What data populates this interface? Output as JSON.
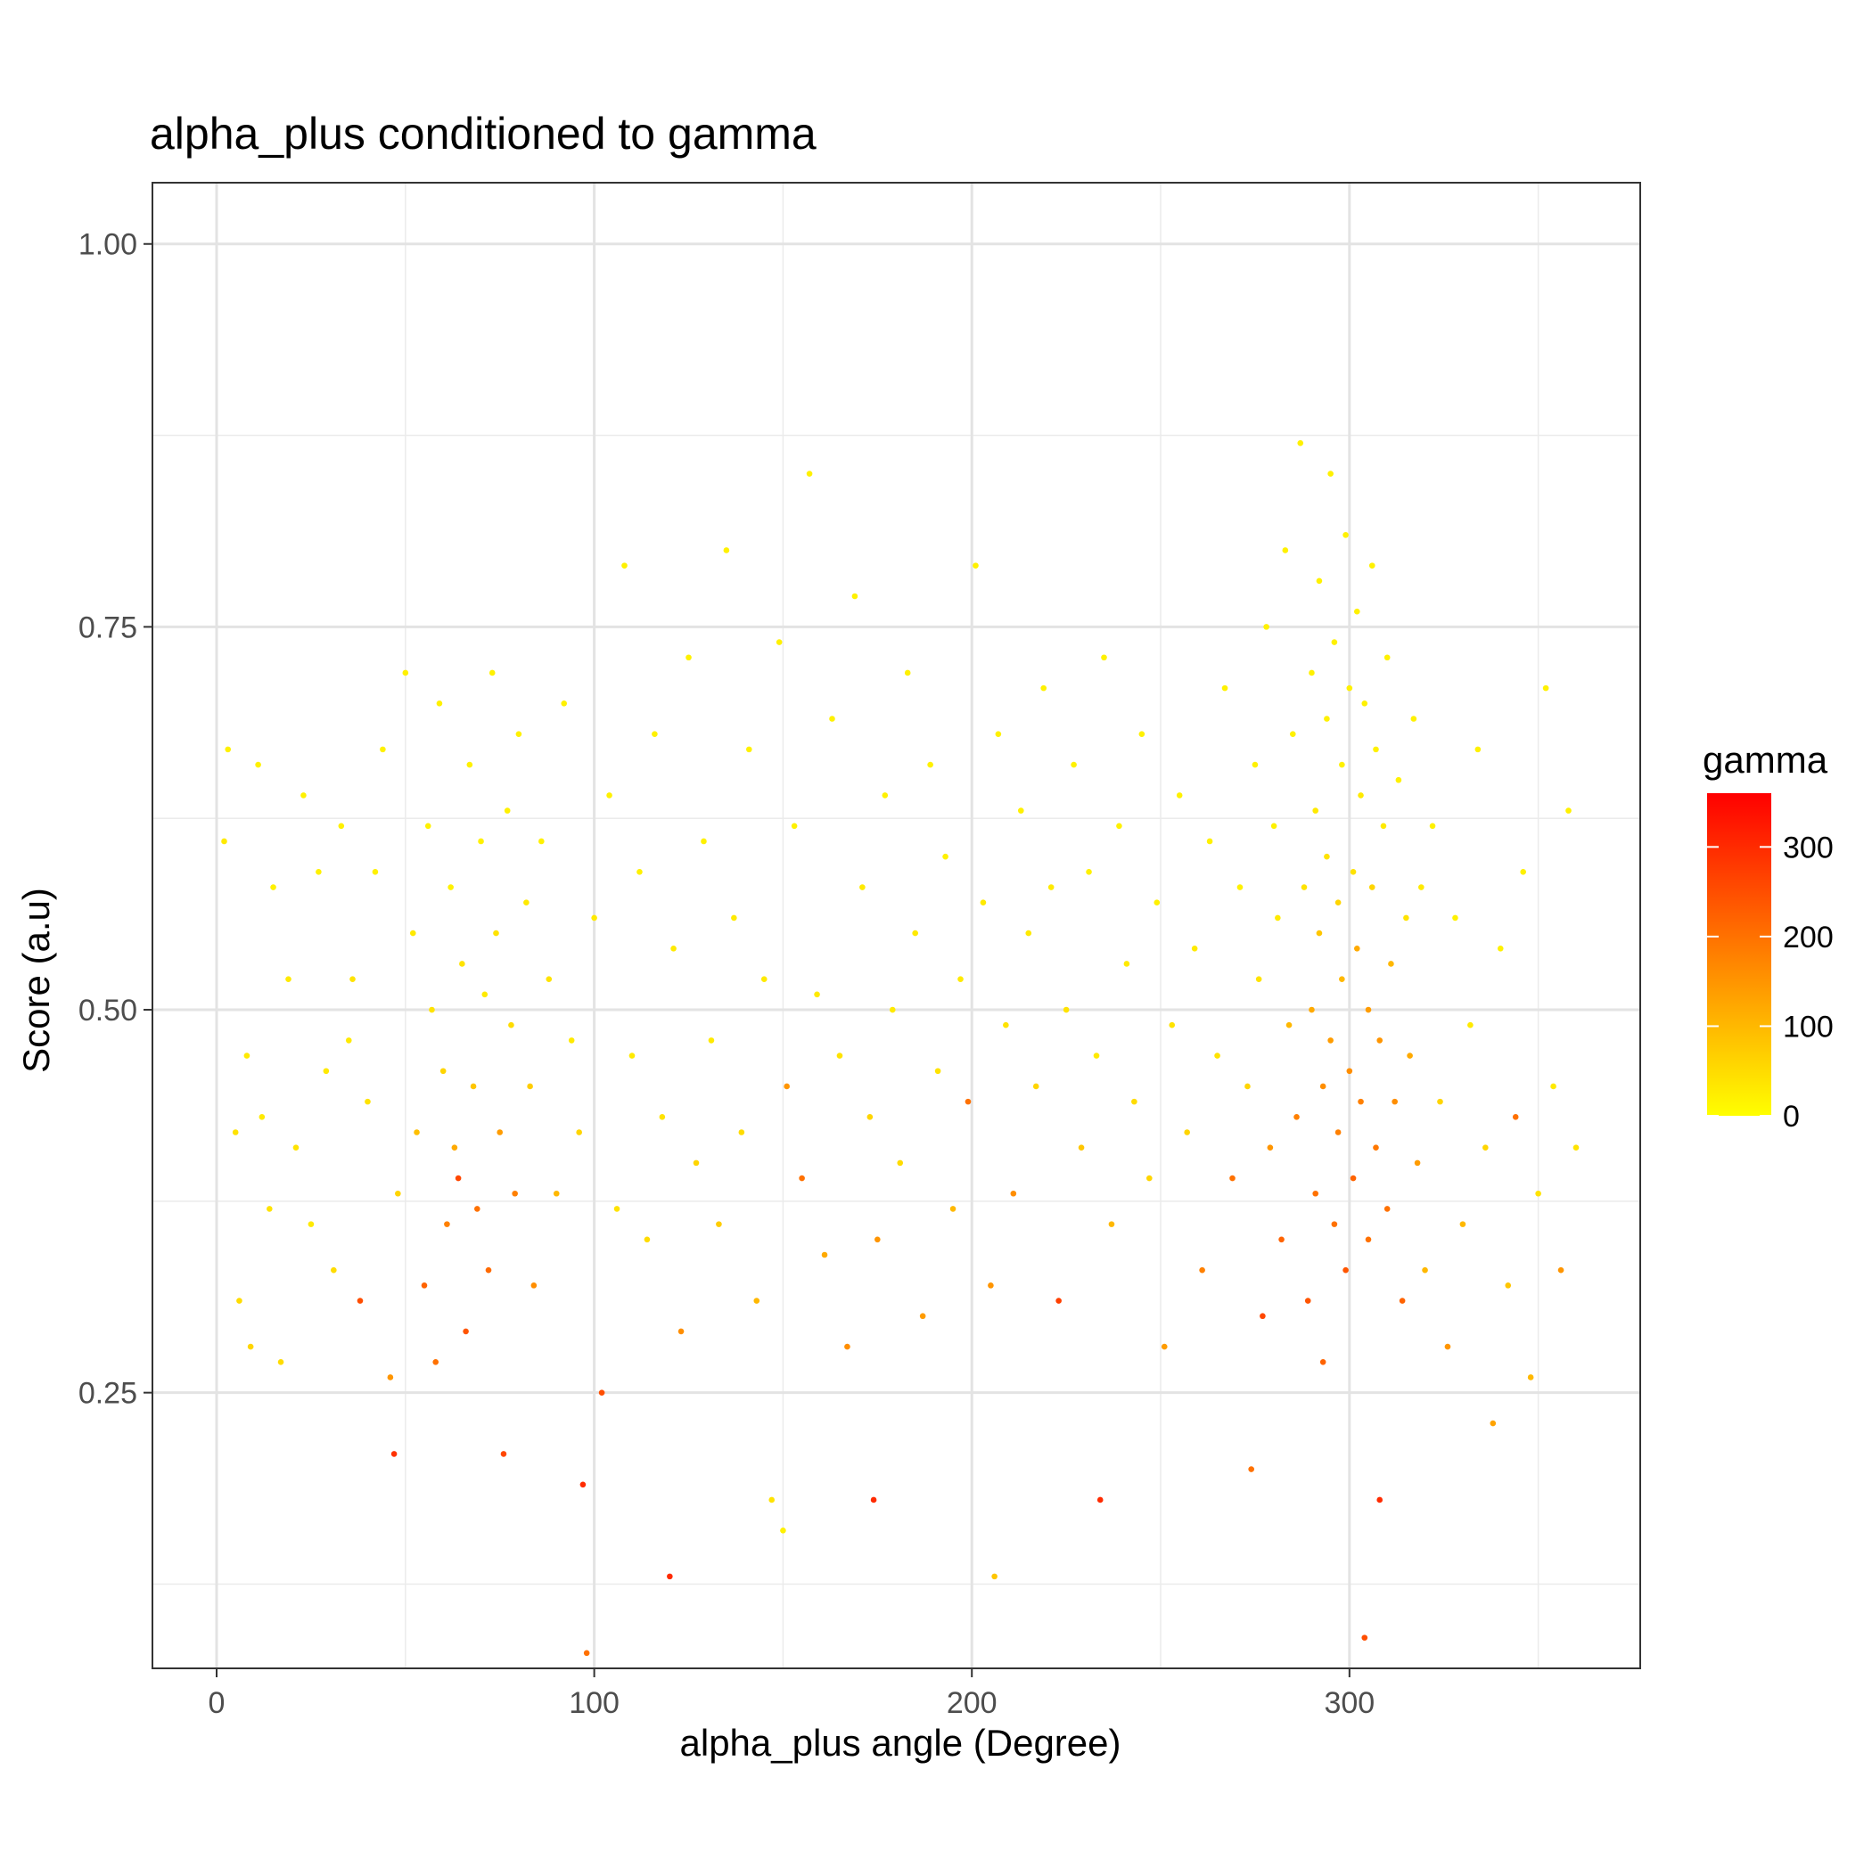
{
  "chart_data": {
    "type": "scatter",
    "title": "alpha_plus conditioned to gamma",
    "xlabel": "alpha_plus angle (Degree)",
    "ylabel": "Score (a.u)",
    "xlim": [
      -17,
      377
    ],
    "ylim": [
      0.07,
      1.04
    ],
    "x_ticks": [
      0,
      100,
      200,
      300
    ],
    "x_tick_labels": [
      "0",
      "100",
      "200",
      "300"
    ],
    "y_ticks": [
      0.25,
      0.5,
      0.75,
      1.0
    ],
    "y_tick_labels": [
      "0.25",
      "0.50",
      "0.75",
      "1.00"
    ],
    "x_minor_ticks": [
      50,
      150,
      250,
      350
    ],
    "y_minor_ticks": [
      0.125,
      0.375,
      0.625,
      0.875
    ],
    "grid": true,
    "theme": "bw",
    "color_scale": {
      "variable": "gamma",
      "low_color": "#FFFF00",
      "high_color": "#FF0000",
      "limits": [
        0,
        360
      ],
      "ticks": [
        0,
        100,
        200,
        300
      ],
      "tick_labels": [
        "0",
        "100",
        "200",
        "300"
      ]
    },
    "legend": {
      "title": "gamma",
      "position": "right"
    },
    "points": [
      [
        2,
        0.61,
        30
      ],
      [
        3,
        0.67,
        20
      ],
      [
        5,
        0.42,
        40
      ],
      [
        6,
        0.31,
        50
      ],
      [
        8,
        0.47,
        30
      ],
      [
        9,
        0.28,
        60
      ],
      [
        11,
        0.66,
        20
      ],
      [
        12,
        0.43,
        30
      ],
      [
        14,
        0.37,
        40
      ],
      [
        15,
        0.58,
        20
      ],
      [
        17,
        0.27,
        50
      ],
      [
        19,
        0.52,
        30
      ],
      [
        21,
        0.41,
        40
      ],
      [
        23,
        0.64,
        20
      ],
      [
        25,
        0.36,
        30
      ],
      [
        27,
        0.59,
        20
      ],
      [
        29,
        0.46,
        30
      ],
      [
        31,
        0.33,
        50
      ],
      [
        33,
        0.62,
        20
      ],
      [
        35,
        0.48,
        30
      ],
      [
        36,
        0.52,
        40
      ],
      [
        38,
        0.31,
        250
      ],
      [
        40,
        0.44,
        40
      ],
      [
        42,
        0.59,
        20
      ],
      [
        44,
        0.67,
        20
      ],
      [
        46,
        0.26,
        150
      ],
      [
        47,
        0.21,
        290
      ],
      [
        48,
        0.38,
        60
      ],
      [
        50,
        0.72,
        20
      ],
      [
        52,
        0.55,
        30
      ],
      [
        53,
        0.42,
        90
      ],
      [
        55,
        0.32,
        220
      ],
      [
        56,
        0.62,
        20
      ],
      [
        57,
        0.5,
        40
      ],
      [
        58,
        0.27,
        200
      ],
      [
        59,
        0.7,
        20
      ],
      [
        60,
        0.46,
        60
      ],
      [
        61,
        0.36,
        180
      ],
      [
        62,
        0.58,
        20
      ],
      [
        63,
        0.41,
        120
      ],
      [
        64,
        0.39,
        260
      ],
      [
        65,
        0.53,
        40
      ],
      [
        66,
        0.29,
        240
      ],
      [
        67,
        0.66,
        20
      ],
      [
        68,
        0.45,
        80
      ],
      [
        69,
        0.37,
        200
      ],
      [
        70,
        0.61,
        20
      ],
      [
        71,
        0.51,
        30
      ],
      [
        72,
        0.33,
        210
      ],
      [
        73,
        0.72,
        20
      ],
      [
        74,
        0.55,
        40
      ],
      [
        75,
        0.42,
        140
      ],
      [
        76,
        0.21,
        260
      ],
      [
        77,
        0.63,
        20
      ],
      [
        78,
        0.49,
        50
      ],
      [
        79,
        0.38,
        180
      ],
      [
        80,
        0.68,
        20
      ],
      [
        82,
        0.57,
        30
      ],
      [
        83,
        0.45,
        70
      ],
      [
        84,
        0.32,
        160
      ],
      [
        86,
        0.61,
        20
      ],
      [
        88,
        0.52,
        40
      ],
      [
        90,
        0.38,
        100
      ],
      [
        92,
        0.7,
        20
      ],
      [
        94,
        0.48,
        30
      ],
      [
        96,
        0.42,
        60
      ],
      [
        97,
        0.19,
        300
      ],
      [
        98,
        0.08,
        200
      ],
      [
        100,
        0.56,
        30
      ],
      [
        102,
        0.25,
        250
      ],
      [
        104,
        0.64,
        20
      ],
      [
        106,
        0.37,
        40
      ],
      [
        108,
        0.79,
        20
      ],
      [
        110,
        0.47,
        30
      ],
      [
        112,
        0.59,
        20
      ],
      [
        114,
        0.35,
        50
      ],
      [
        116,
        0.68,
        20
      ],
      [
        118,
        0.43,
        40
      ],
      [
        120,
        0.13,
        300
      ],
      [
        121,
        0.54,
        30
      ],
      [
        123,
        0.29,
        160
      ],
      [
        125,
        0.73,
        20
      ],
      [
        127,
        0.4,
        60
      ],
      [
        129,
        0.61,
        20
      ],
      [
        131,
        0.48,
        30
      ],
      [
        133,
        0.36,
        70
      ],
      [
        135,
        0.8,
        20
      ],
      [
        137,
        0.56,
        30
      ],
      [
        139,
        0.42,
        50
      ],
      [
        141,
        0.67,
        20
      ],
      [
        143,
        0.31,
        100
      ],
      [
        145,
        0.52,
        30
      ],
      [
        147,
        0.18,
        40
      ],
      [
        149,
        0.74,
        20
      ],
      [
        150,
        0.16,
        20
      ],
      [
        151,
        0.45,
        150
      ],
      [
        153,
        0.62,
        20
      ],
      [
        155,
        0.39,
        200
      ],
      [
        157,
        0.85,
        20
      ],
      [
        159,
        0.51,
        30
      ],
      [
        161,
        0.34,
        120
      ],
      [
        163,
        0.69,
        20
      ],
      [
        165,
        0.47,
        40
      ],
      [
        167,
        0.28,
        160
      ],
      [
        169,
        0.77,
        20
      ],
      [
        171,
        0.58,
        30
      ],
      [
        173,
        0.43,
        60
      ],
      [
        174,
        0.18,
        300
      ],
      [
        175,
        0.35,
        150
      ],
      [
        177,
        0.64,
        20
      ],
      [
        179,
        0.5,
        30
      ],
      [
        181,
        0.4,
        50
      ],
      [
        183,
        0.72,
        20
      ],
      [
        185,
        0.55,
        30
      ],
      [
        187,
        0.3,
        140
      ],
      [
        189,
        0.66,
        20
      ],
      [
        191,
        0.46,
        40
      ],
      [
        193,
        0.6,
        20
      ],
      [
        195,
        0.37,
        100
      ],
      [
        197,
        0.52,
        30
      ],
      [
        199,
        0.44,
        200
      ],
      [
        201,
        0.79,
        20
      ],
      [
        203,
        0.57,
        30
      ],
      [
        205,
        0.32,
        150
      ],
      [
        206,
        0.13,
        80
      ],
      [
        207,
        0.68,
        20
      ],
      [
        209,
        0.49,
        40
      ],
      [
        211,
        0.38,
        160
      ],
      [
        213,
        0.63,
        20
      ],
      [
        215,
        0.55,
        30
      ],
      [
        217,
        0.45,
        60
      ],
      [
        219,
        0.71,
        20
      ],
      [
        221,
        0.58,
        30
      ],
      [
        223,
        0.31,
        270
      ],
      [
        225,
        0.5,
        40
      ],
      [
        227,
        0.66,
        20
      ],
      [
        229,
        0.41,
        80
      ],
      [
        231,
        0.59,
        20
      ],
      [
        233,
        0.47,
        30
      ],
      [
        234,
        0.18,
        300
      ],
      [
        235,
        0.73,
        20
      ],
      [
        237,
        0.36,
        100
      ],
      [
        239,
        0.62,
        20
      ],
      [
        241,
        0.53,
        30
      ],
      [
        243,
        0.44,
        50
      ],
      [
        245,
        0.68,
        20
      ],
      [
        247,
        0.39,
        60
      ],
      [
        249,
        0.57,
        20
      ],
      [
        251,
        0.28,
        140
      ],
      [
        253,
        0.49,
        40
      ],
      [
        255,
        0.64,
        20
      ],
      [
        257,
        0.42,
        60
      ],
      [
        259,
        0.54,
        30
      ],
      [
        261,
        0.33,
        180
      ],
      [
        263,
        0.61,
        20
      ],
      [
        265,
        0.47,
        40
      ],
      [
        267,
        0.71,
        20
      ],
      [
        269,
        0.39,
        200
      ],
      [
        271,
        0.58,
        20
      ],
      [
        273,
        0.45,
        60
      ],
      [
        274,
        0.2,
        200
      ],
      [
        275,
        0.66,
        20
      ],
      [
        276,
        0.52,
        40
      ],
      [
        277,
        0.3,
        260
      ],
      [
        278,
        0.75,
        20
      ],
      [
        279,
        0.41,
        150
      ],
      [
        280,
        0.62,
        20
      ],
      [
        281,
        0.56,
        30
      ],
      [
        282,
        0.35,
        220
      ],
      [
        283,
        0.8,
        20
      ],
      [
        284,
        0.49,
        100
      ],
      [
        285,
        0.68,
        20
      ],
      [
        286,
        0.43,
        180
      ],
      [
        287,
        0.87,
        20
      ],
      [
        288,
        0.58,
        40
      ],
      [
        289,
        0.31,
        240
      ],
      [
        290,
        0.72,
        20
      ],
      [
        290,
        0.5,
        120
      ],
      [
        291,
        0.63,
        30
      ],
      [
        291,
        0.38,
        200
      ],
      [
        292,
        0.78,
        20
      ],
      [
        292,
        0.55,
        80
      ],
      [
        293,
        0.45,
        160
      ],
      [
        293,
        0.27,
        220
      ],
      [
        294,
        0.69,
        20
      ],
      [
        294,
        0.6,
        40
      ],
      [
        295,
        0.85,
        20
      ],
      [
        295,
        0.48,
        140
      ],
      [
        296,
        0.36,
        200
      ],
      [
        296,
        0.74,
        20
      ],
      [
        297,
        0.57,
        60
      ],
      [
        297,
        0.42,
        180
      ],
      [
        298,
        0.66,
        20
      ],
      [
        298,
        0.52,
        100
      ],
      [
        299,
        0.81,
        20
      ],
      [
        299,
        0.33,
        240
      ],
      [
        300,
        0.71,
        20
      ],
      [
        300,
        0.46,
        160
      ],
      [
        301,
        0.59,
        40
      ],
      [
        301,
        0.39,
        220
      ],
      [
        302,
        0.76,
        20
      ],
      [
        302,
        0.54,
        120
      ],
      [
        303,
        0.64,
        30
      ],
      [
        303,
        0.44,
        180
      ],
      [
        304,
        0.09,
        250
      ],
      [
        304,
        0.7,
        20
      ],
      [
        305,
        0.5,
        140
      ],
      [
        305,
        0.35,
        200
      ],
      [
        306,
        0.79,
        20
      ],
      [
        306,
        0.58,
        60
      ],
      [
        307,
        0.41,
        190
      ],
      [
        307,
        0.67,
        20
      ],
      [
        308,
        0.48,
        150
      ],
      [
        308,
        0.18,
        300
      ],
      [
        309,
        0.62,
        30
      ],
      [
        310,
        0.37,
        200
      ],
      [
        310,
        0.73,
        20
      ],
      [
        311,
        0.53,
        100
      ],
      [
        312,
        0.44,
        160
      ],
      [
        313,
        0.65,
        20
      ],
      [
        314,
        0.31,
        220
      ],
      [
        315,
        0.56,
        40
      ],
      [
        316,
        0.47,
        120
      ],
      [
        317,
        0.69,
        20
      ],
      [
        318,
        0.4,
        140
      ],
      [
        319,
        0.58,
        30
      ],
      [
        320,
        0.33,
        100
      ],
      [
        322,
        0.62,
        20
      ],
      [
        324,
        0.44,
        60
      ],
      [
        326,
        0.28,
        150
      ],
      [
        328,
        0.56,
        20
      ],
      [
        330,
        0.36,
        100
      ],
      [
        332,
        0.49,
        30
      ],
      [
        334,
        0.67,
        20
      ],
      [
        336,
        0.41,
        60
      ],
      [
        338,
        0.23,
        130
      ],
      [
        340,
        0.54,
        20
      ],
      [
        342,
        0.32,
        80
      ],
      [
        344,
        0.43,
        200
      ],
      [
        346,
        0.59,
        20
      ],
      [
        348,
        0.26,
        100
      ],
      [
        350,
        0.38,
        40
      ],
      [
        352,
        0.71,
        20
      ],
      [
        354,
        0.45,
        30
      ],
      [
        356,
        0.33,
        150
      ],
      [
        358,
        0.63,
        20
      ],
      [
        360,
        0.41,
        40
      ]
    ]
  }
}
